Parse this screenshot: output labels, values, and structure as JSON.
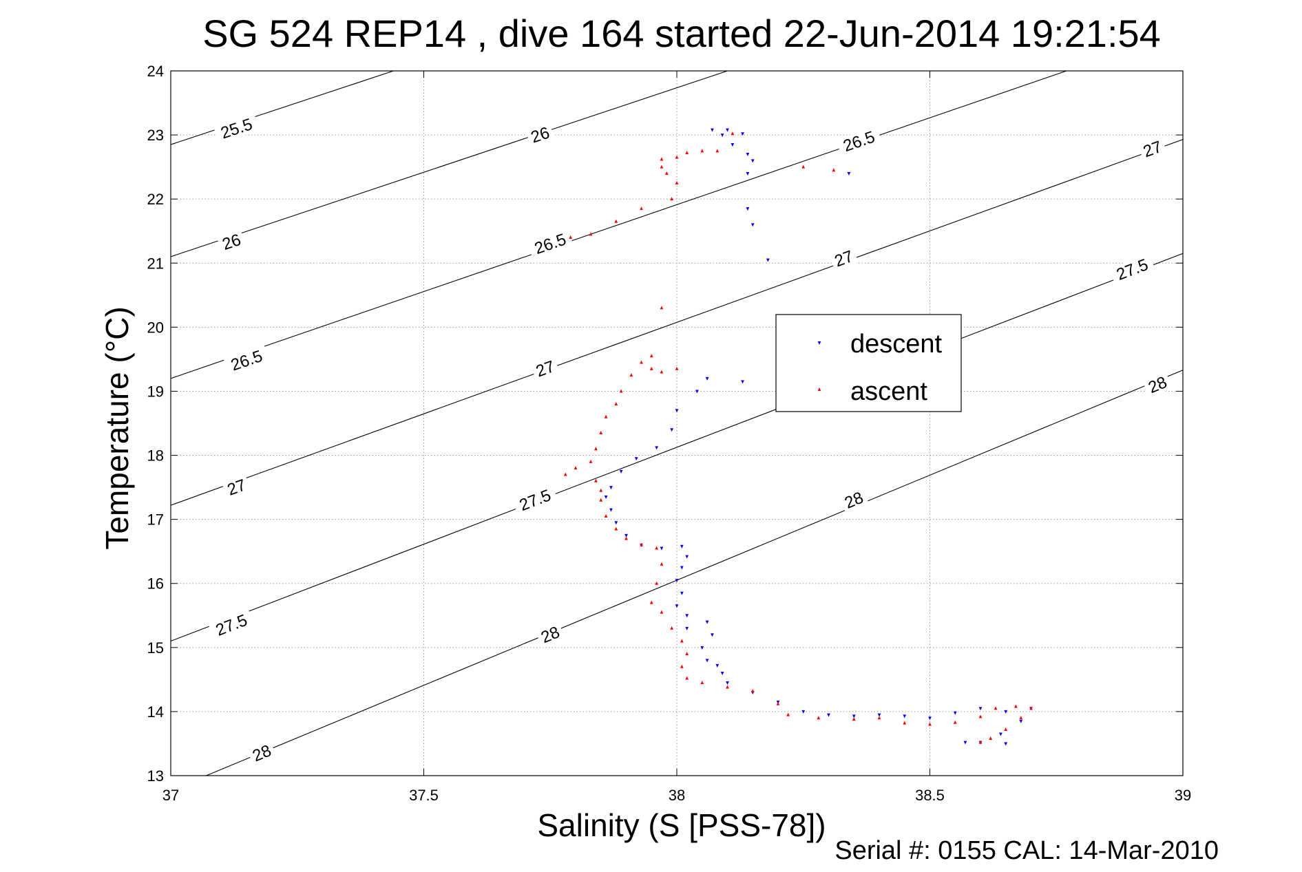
{
  "chart_data": {
    "type": "scatter",
    "title": "SG 524   REP14  , dive 164 started 22-Jun-2014 19:21:54",
    "xlabel": "Salinity (S [PSS-78])",
    "ylabel": "Temperature (°C)",
    "footer": "Serial #: 0155  CAL: 14-Mar-2010",
    "xlim": [
      37,
      39
    ],
    "ylim": [
      13,
      24
    ],
    "xticks": [
      37,
      37.5,
      38,
      38.5,
      39
    ],
    "xtick_labels": [
      "37",
      "37.5",
      "38",
      "38.5",
      "39"
    ],
    "yticks": [
      13,
      14,
      15,
      16,
      17,
      18,
      19,
      20,
      21,
      22,
      23,
      24
    ],
    "ytick_labels": [
      "13",
      "14",
      "15",
      "16",
      "17",
      "18",
      "19",
      "20",
      "21",
      "22",
      "23",
      "24"
    ],
    "grid": true,
    "legend_position": "center-right",
    "contours": [
      {
        "level": "25.5",
        "points": [
          [
            37,
            22.85
          ],
          [
            37.44,
            24.0
          ]
        ],
        "labels": [
          {
            "x": 37.13,
            "y": 23.1,
            "text": "25.5"
          }
        ]
      },
      {
        "level": "26",
        "points": [
          [
            37,
            21.1
          ],
          [
            38.1,
            24.0
          ]
        ],
        "labels": [
          {
            "x": 37.12,
            "y": 21.33,
            "text": "26"
          },
          {
            "x": 37.73,
            "y": 23.0,
            "text": "26"
          }
        ]
      },
      {
        "level": "26.5",
        "points": [
          [
            37,
            19.2
          ],
          [
            38.77,
            24.0
          ]
        ],
        "labels": [
          {
            "x": 37.15,
            "y": 19.48,
            "text": "26.5"
          },
          {
            "x": 37.75,
            "y": 21.3,
            "text": "26.5"
          },
          {
            "x": 38.36,
            "y": 22.9,
            "text": "26.5"
          }
        ]
      },
      {
        "level": "27",
        "points": [
          [
            37,
            17.22
          ],
          [
            39,
            22.93
          ]
        ],
        "labels": [
          {
            "x": 37.13,
            "y": 17.5,
            "text": "27"
          },
          {
            "x": 37.74,
            "y": 19.35,
            "text": "27"
          },
          {
            "x": 38.33,
            "y": 21.07,
            "text": "27"
          },
          {
            "x": 38.94,
            "y": 22.78,
            "text": "27"
          }
        ]
      },
      {
        "level": "27.5",
        "points": [
          [
            37,
            15.1
          ],
          [
            39,
            21.15
          ]
        ],
        "labels": [
          {
            "x": 37.12,
            "y": 15.35,
            "text": "27.5"
          },
          {
            "x": 37.72,
            "y": 17.3,
            "text": "27.5"
          },
          {
            "x": 38.9,
            "y": 20.9,
            "text": "27.5"
          }
        ]
      },
      {
        "level": "28",
        "points": [
          [
            37.07,
            13.0
          ],
          [
            39,
            19.33
          ]
        ],
        "labels": [
          {
            "x": 37.18,
            "y": 13.35,
            "text": "28"
          },
          {
            "x": 37.75,
            "y": 15.2,
            "text": "28"
          },
          {
            "x": 38.35,
            "y": 17.3,
            "text": "28"
          },
          {
            "x": 38.95,
            "y": 19.1,
            "text": "28"
          }
        ]
      }
    ],
    "series": [
      {
        "name": "descent",
        "color": "#0000ff",
        "marker": "triangle-down",
        "points": [
          [
            38.07,
            23.08
          ],
          [
            38.1,
            23.08
          ],
          [
            38.09,
            23.0
          ],
          [
            38.13,
            23.02
          ],
          [
            38.11,
            22.85
          ],
          [
            38.14,
            22.7
          ],
          [
            38.15,
            22.6
          ],
          [
            38.14,
            22.4
          ],
          [
            38.34,
            22.4
          ],
          [
            38.14,
            21.85
          ],
          [
            38.15,
            21.6
          ],
          [
            38.18,
            21.05
          ],
          [
            38.06,
            19.2
          ],
          [
            38.13,
            19.15
          ],
          [
            38.04,
            19.0
          ],
          [
            38.0,
            18.7
          ],
          [
            37.99,
            18.4
          ],
          [
            37.96,
            18.12
          ],
          [
            37.92,
            17.95
          ],
          [
            37.89,
            17.75
          ],
          [
            37.87,
            17.5
          ],
          [
            37.86,
            17.35
          ],
          [
            37.87,
            17.15
          ],
          [
            37.88,
            16.95
          ],
          [
            37.9,
            16.75
          ],
          [
            37.93,
            16.6
          ],
          [
            37.97,
            16.55
          ],
          [
            38.01,
            16.58
          ],
          [
            38.02,
            16.42
          ],
          [
            38.01,
            16.25
          ],
          [
            38.0,
            16.05
          ],
          [
            38.01,
            15.85
          ],
          [
            38.0,
            15.65
          ],
          [
            38.02,
            15.5
          ],
          [
            38.02,
            15.3
          ],
          [
            38.06,
            15.4
          ],
          [
            38.07,
            15.2
          ],
          [
            38.05,
            15.0
          ],
          [
            38.06,
            14.8
          ],
          [
            38.08,
            14.72
          ],
          [
            38.09,
            14.6
          ],
          [
            38.1,
            14.45
          ],
          [
            38.15,
            14.3
          ],
          [
            38.2,
            14.15
          ],
          [
            38.25,
            14.0
          ],
          [
            38.3,
            13.95
          ],
          [
            38.35,
            13.93
          ],
          [
            38.4,
            13.95
          ],
          [
            38.45,
            13.93
          ],
          [
            38.5,
            13.9
          ],
          [
            38.55,
            13.98
          ],
          [
            38.6,
            14.05
          ],
          [
            38.65,
            14.0
          ],
          [
            38.7,
            14.05
          ],
          [
            38.68,
            13.85
          ],
          [
            38.64,
            13.65
          ],
          [
            38.6,
            13.52
          ],
          [
            38.57,
            13.52
          ],
          [
            38.65,
            13.5
          ]
        ]
      },
      {
        "name": "ascent",
        "color": "#ff0000",
        "marker": "triangle-up",
        "points": [
          [
            38.11,
            23.02
          ],
          [
            38.08,
            22.75
          ],
          [
            38.05,
            22.75
          ],
          [
            38.02,
            22.72
          ],
          [
            38.0,
            22.65
          ],
          [
            37.97,
            22.62
          ],
          [
            37.97,
            22.5
          ],
          [
            37.98,
            22.4
          ],
          [
            38.0,
            22.25
          ],
          [
            37.99,
            22.0
          ],
          [
            37.93,
            21.85
          ],
          [
            38.25,
            22.5
          ],
          [
            38.31,
            22.45
          ],
          [
            37.88,
            21.65
          ],
          [
            37.83,
            21.45
          ],
          [
            37.79,
            21.4
          ],
          [
            37.97,
            20.3
          ],
          [
            37.95,
            19.55
          ],
          [
            37.93,
            19.45
          ],
          [
            37.95,
            19.35
          ],
          [
            37.97,
            19.3
          ],
          [
            38.0,
            19.35
          ],
          [
            37.91,
            19.25
          ],
          [
            37.89,
            19.0
          ],
          [
            37.88,
            18.8
          ],
          [
            37.86,
            18.6
          ],
          [
            37.85,
            18.35
          ],
          [
            37.84,
            18.1
          ],
          [
            37.83,
            17.9
          ],
          [
            37.8,
            17.8
          ],
          [
            37.78,
            17.7
          ],
          [
            37.84,
            17.6
          ],
          [
            37.85,
            17.45
          ],
          [
            37.85,
            17.3
          ],
          [
            37.86,
            17.05
          ],
          [
            37.88,
            16.85
          ],
          [
            37.9,
            16.7
          ],
          [
            37.93,
            16.6
          ],
          [
            37.96,
            16.55
          ],
          [
            37.97,
            16.3
          ],
          [
            37.96,
            16.0
          ],
          [
            37.95,
            15.7
          ],
          [
            37.97,
            15.55
          ],
          [
            37.99,
            15.3
          ],
          [
            38.01,
            15.1
          ],
          [
            38.02,
            14.9
          ],
          [
            38.01,
            14.7
          ],
          [
            38.02,
            14.52
          ],
          [
            38.05,
            14.45
          ],
          [
            38.1,
            14.38
          ],
          [
            38.15,
            14.32
          ],
          [
            38.2,
            14.12
          ],
          [
            38.22,
            13.95
          ],
          [
            38.28,
            13.9
          ],
          [
            38.35,
            13.88
          ],
          [
            38.4,
            13.9
          ],
          [
            38.45,
            13.82
          ],
          [
            38.5,
            13.8
          ],
          [
            38.55,
            13.83
          ],
          [
            38.6,
            13.92
          ],
          [
            38.63,
            14.05
          ],
          [
            38.67,
            14.08
          ],
          [
            38.7,
            14.05
          ],
          [
            38.68,
            13.9
          ],
          [
            38.65,
            13.72
          ],
          [
            38.62,
            13.58
          ],
          [
            38.6,
            13.52
          ]
        ]
      }
    ]
  }
}
